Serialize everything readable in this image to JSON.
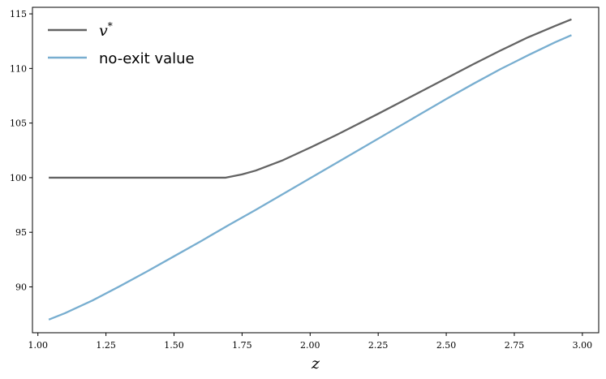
{
  "chart_data": {
    "type": "line",
    "title": "",
    "xlabel": "z",
    "ylabel": "",
    "xlim": [
      0.98,
      3.06
    ],
    "ylim": [
      85.8,
      115.6
    ],
    "xticks": [
      1.0,
      1.25,
      1.5,
      1.75,
      2.0,
      2.25,
      2.5,
      2.75,
      3.0
    ],
    "xtick_labels": [
      "1.00",
      "1.25",
      "1.50",
      "1.75",
      "2.00",
      "2.25",
      "2.50",
      "2.75",
      "3.00"
    ],
    "yticks": [
      90,
      95,
      100,
      105,
      110,
      115
    ],
    "ytick_labels": [
      "90",
      "95",
      "100",
      "105",
      "110",
      "115"
    ],
    "grid": false,
    "legend_position": "top-left",
    "series": [
      {
        "name": "v*",
        "legend_base": "v",
        "legend_sup": "*",
        "color": "#636363",
        "x": [
          1.04,
          1.2,
          1.4,
          1.6,
          1.69,
          1.75,
          1.8,
          1.9,
          2.0,
          2.1,
          2.25,
          2.4,
          2.5,
          2.6,
          2.7,
          2.8,
          2.9,
          2.96
        ],
        "y": [
          100.0,
          100.0,
          100.0,
          100.0,
          100.0,
          100.3,
          100.65,
          101.6,
          102.75,
          103.95,
          105.85,
          107.8,
          109.1,
          110.4,
          111.65,
          112.85,
          113.9,
          114.5
        ]
      },
      {
        "name": "no-exit value",
        "legend_base": "no-exit value",
        "legend_sup": "",
        "color": "#78aed0",
        "x": [
          1.04,
          1.1,
          1.2,
          1.3,
          1.4,
          1.5,
          1.6,
          1.7,
          1.8,
          1.9,
          2.0,
          2.1,
          2.2,
          2.3,
          2.4,
          2.5,
          2.6,
          2.7,
          2.8,
          2.9,
          2.96
        ],
        "y": [
          87.0,
          87.6,
          88.75,
          90.05,
          91.4,
          92.8,
          94.2,
          95.65,
          97.05,
          98.5,
          99.95,
          101.4,
          102.85,
          104.3,
          105.75,
          107.2,
          108.6,
          109.95,
          111.2,
          112.4,
          113.05
        ]
      }
    ]
  }
}
